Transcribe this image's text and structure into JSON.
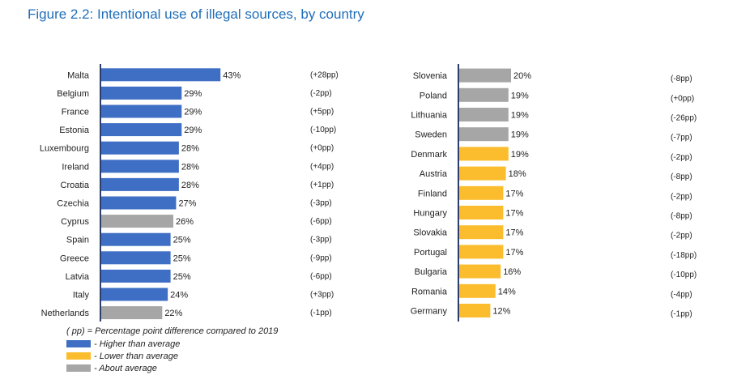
{
  "title": "Figure 2.2: Intentional use of illegal sources, by country",
  "colors": {
    "higher": "#3f6fc4",
    "lower": "#fbbd2e",
    "about": "#a6a6a6",
    "title": "#1f6eb8"
  },
  "legend": {
    "note": "( pp) = Percentage point difference compared to 2019",
    "items": [
      {
        "label": "- Higher than average",
        "group": "higher"
      },
      {
        "label": "- Lower than average",
        "group": "lower"
      },
      {
        "label": "- About average",
        "group": "about"
      }
    ]
  },
  "chart_data": [
    {
      "type": "bar",
      "orientation": "horizontal",
      "categories": [
        "Malta",
        "Belgium",
        "France",
        "Estonia",
        "Luxembourg",
        "Ireland",
        "Croatia",
        "Czechia",
        "Cyprus",
        "Spain",
        "Greece",
        "Latvia",
        "Italy",
        "Netherlands"
      ],
      "values": [
        43,
        29,
        29,
        29,
        28,
        28,
        28,
        27,
        26,
        25,
        25,
        25,
        24,
        22
      ],
      "value_labels": [
        "43%",
        "29%",
        "29%",
        "29%",
        "28%",
        "28%",
        "28%",
        "27%",
        "26%",
        "25%",
        "25%",
        "25%",
        "24%",
        "22%"
      ],
      "groups": [
        "higher",
        "higher",
        "higher",
        "higher",
        "higher",
        "higher",
        "higher",
        "higher",
        "about",
        "higher",
        "higher",
        "higher",
        "higher",
        "about"
      ],
      "changes": [
        "(+28pp)",
        "(-2pp)",
        "(+5pp)",
        "(-10pp)",
        "(+0pp)",
        "(+4pp)",
        "(+1pp)",
        "(-3pp)",
        "(-6pp)",
        "(-3pp)",
        "(-9pp)",
        "(-6pp)",
        "(+3pp)",
        "(-1pp)"
      ]
    },
    {
      "type": "bar",
      "orientation": "horizontal",
      "categories": [
        "Slovenia",
        "Poland",
        "Lithuania",
        "Sweden",
        "Denmark",
        "Austria",
        "Finland",
        "Hungary",
        "Slovakia",
        "Portugal",
        "Bulgaria",
        "Romania",
        "Germany"
      ],
      "values": [
        20,
        19,
        19,
        19,
        19,
        18,
        17,
        17,
        17,
        17,
        16,
        14,
        12
      ],
      "value_labels": [
        "20%",
        "19%",
        "19%",
        "19%",
        "19%",
        "18%",
        "17%",
        "17%",
        "17%",
        "17%",
        "16%",
        "14%",
        "12%"
      ],
      "groups": [
        "about",
        "about",
        "about",
        "about",
        "lower",
        "lower",
        "lower",
        "lower",
        "lower",
        "lower",
        "lower",
        "lower",
        "lower"
      ],
      "changes": [
        "(-8pp)",
        "(+0pp)",
        "(-26pp)",
        "(-7pp)",
        "(-2pp)",
        "(-8pp)",
        "(-2pp)",
        "(-8pp)",
        "(-2pp)",
        "(-18pp)",
        "(-10pp)",
        "(-4pp)",
        "(-1pp)"
      ]
    }
  ]
}
